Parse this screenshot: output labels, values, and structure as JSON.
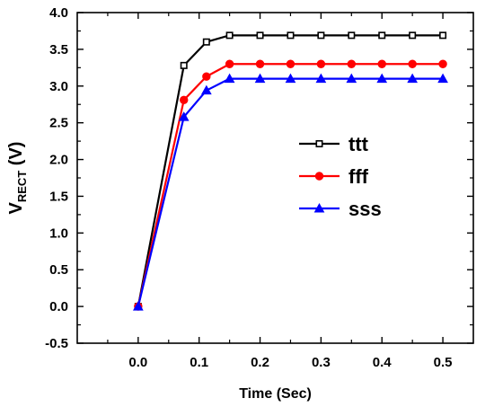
{
  "chart_data": {
    "type": "line",
    "xlabel": "Time (Sec)",
    "ylabel": {
      "main": "V",
      "subscript": "RECT",
      "unit": " (V)"
    },
    "xlim": [
      -0.1,
      0.55
    ],
    "ylim": [
      -0.5,
      4.0
    ],
    "xticks": [
      "0.0",
      "0.1",
      "0.2",
      "0.3",
      "0.4",
      "0.5"
    ],
    "xtick_values": [
      0.0,
      0.1,
      0.2,
      0.3,
      0.4,
      0.5
    ],
    "yticks": [
      "-0.5",
      "0.0",
      "0.5",
      "1.0",
      "1.5",
      "2.0",
      "2.5",
      "3.0",
      "3.5",
      "4.0"
    ],
    "ytick_values": [
      -0.5,
      0.0,
      0.5,
      1.0,
      1.5,
      2.0,
      2.5,
      3.0,
      3.5,
      4.0
    ],
    "grid": false,
    "legend_position": "right-middle",
    "series": [
      {
        "name": "ttt",
        "color": "#000000",
        "marker": "square",
        "x": [
          0.0,
          0.075,
          0.112,
          0.15,
          0.2,
          0.25,
          0.3,
          0.35,
          0.4,
          0.45,
          0.5
        ],
        "y": [
          0.0,
          3.28,
          3.6,
          3.69,
          3.69,
          3.69,
          3.69,
          3.69,
          3.69,
          3.69,
          3.69
        ]
      },
      {
        "name": "fff",
        "color": "#ff0000",
        "marker": "circle",
        "x": [
          0.0,
          0.075,
          0.112,
          0.15,
          0.2,
          0.25,
          0.3,
          0.35,
          0.4,
          0.45,
          0.5
        ],
        "y": [
          0.0,
          2.81,
          3.13,
          3.3,
          3.3,
          3.3,
          3.3,
          3.3,
          3.3,
          3.3,
          3.3
        ]
      },
      {
        "name": "sss",
        "color": "#0000ff",
        "marker": "triangle",
        "x": [
          0.0,
          0.075,
          0.112,
          0.15,
          0.2,
          0.25,
          0.3,
          0.35,
          0.4,
          0.45,
          0.5
        ],
        "y": [
          0.0,
          2.58,
          2.94,
          3.1,
          3.1,
          3.1,
          3.1,
          3.1,
          3.1,
          3.1,
          3.1
        ]
      }
    ]
  }
}
